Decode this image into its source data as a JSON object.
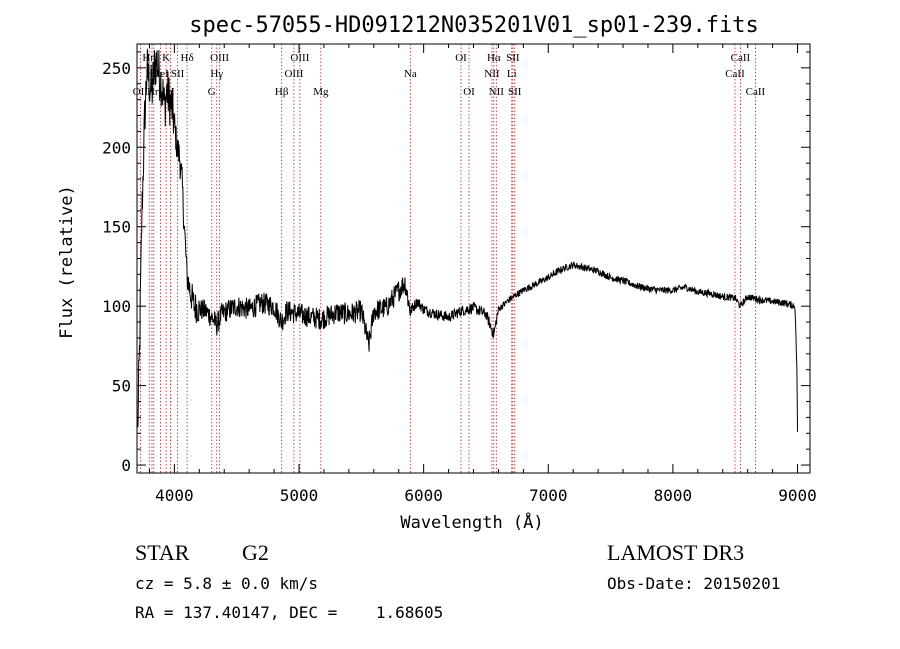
{
  "chart_data": {
    "type": "line",
    "title": "spec-57055-HD091212N035201V01_sp01-239.fits",
    "xlabel": "Wavelength (Å)",
    "ylabel": "Flux (relative)",
    "xlim": [
      3700,
      9100
    ],
    "ylim": [
      -5,
      265
    ],
    "xticks": [
      4000,
      5000,
      6000,
      7000,
      8000,
      9000
    ],
    "yticks": [
      0,
      50,
      100,
      150,
      200,
      250
    ],
    "grid": false,
    "series": [
      {
        "name": "flux",
        "x": [
          3705,
          3720,
          3740,
          3760,
          3780,
          3800,
          3820,
          3840,
          3860,
          3880,
          3900,
          3920,
          3940,
          3960,
          3980,
          4000,
          4020,
          4040,
          4060,
          4080,
          4100,
          4130,
          4160,
          4200,
          4250,
          4300,
          4340,
          4380,
          4420,
          4500,
          4600,
          4700,
          4800,
          4860,
          4900,
          5000,
          5100,
          5180,
          5300,
          5400,
          5500,
          5560,
          5600,
          5700,
          5800,
          5850,
          5893,
          5950,
          6000,
          6100,
          6200,
          6300,
          6400,
          6500,
          6563,
          6600,
          6700,
          6800,
          6900,
          7000,
          7100,
          7200,
          7300,
          7400,
          7500,
          7600,
          7700,
          7800,
          7900,
          8000,
          8100,
          8200,
          8300,
          8400,
          8500,
          8542,
          8600,
          8700,
          8800,
          8900,
          8980,
          8995,
          9000
        ],
        "y": [
          20,
          70,
          160,
          215,
          250,
          240,
          235,
          250,
          255,
          245,
          240,
          225,
          235,
          230,
          225,
          215,
          200,
          195,
          180,
          150,
          120,
          108,
          100,
          98,
          97,
          93,
          88,
          95,
          97,
          100,
          98,
          102,
          100,
          90,
          97,
          95,
          93,
          92,
          96,
          95,
          97,
          75,
          97,
          99,
          110,
          115,
          97,
          103,
          98,
          95,
          93,
          97,
          99,
          95,
          82,
          98,
          105,
          110,
          114,
          118,
          123,
          126,
          124,
          122,
          118,
          116,
          113,
          111,
          110,
          110,
          112,
          109,
          108,
          106,
          105,
          100,
          106,
          104,
          103,
          102,
          100,
          60,
          20
        ]
      }
    ],
    "lines": [
      {
        "x": 3727,
        "label": "OII",
        "row": 2
      },
      {
        "x": 3798,
        "label": "Hη",
        "row": 0
      },
      {
        "x": 3820,
        "label": "Hθ",
        "row": 1
      },
      {
        "x": 3835,
        "label": "Hη",
        "row": 2
      },
      {
        "x": 3889,
        "label": "HeI",
        "row": 1
      },
      {
        "x": 3934,
        "label": "K",
        "row": 0
      },
      {
        "x": 3969,
        "label": "H",
        "row": 2
      },
      {
        "x": 4026,
        "label": "SII",
        "row": 1
      },
      {
        "x": 4102,
        "label": "Hδ",
        "row": 0
      },
      {
        "x": 4300,
        "label": "G",
        "row": 2
      },
      {
        "x": 4340,
        "label": "Hγ",
        "row": 1
      },
      {
        "x": 4363,
        "label": "OIII",
        "row": 0
      },
      {
        "x": 4861,
        "label": "Hβ",
        "row": 2
      },
      {
        "x": 4959,
        "label": "OIII",
        "row": 1
      },
      {
        "x": 5007,
        "label": "OIII",
        "row": 0
      },
      {
        "x": 5175,
        "label": "Mg",
        "row": 2
      },
      {
        "x": 5893,
        "label": "Na",
        "row": 1
      },
      {
        "x": 6300,
        "label": "OI",
        "row": 0
      },
      {
        "x": 6364,
        "label": "OI",
        "row": 2
      },
      {
        "x": 6548,
        "label": "NII",
        "row": 1
      },
      {
        "x": 6563,
        "label": "Hα",
        "row": 0
      },
      {
        "x": 6583,
        "label": "NII",
        "row": 2
      },
      {
        "x": 6707,
        "label": "Li",
        "row": 1
      },
      {
        "x": 6716,
        "label": "SII",
        "row": 0
      },
      {
        "x": 6731,
        "label": "SII",
        "row": 2
      },
      {
        "x": 8498,
        "label": "CaII",
        "row": 1
      },
      {
        "x": 8542,
        "label": "CaII",
        "row": 0
      },
      {
        "x": 8662,
        "label": "CaII",
        "row": 2
      }
    ]
  },
  "info": {
    "class_label": "STAR",
    "subclass": "G2",
    "cz": "cz = 5.8 ± 0.0 km/s",
    "radec": "RA = 137.40147, DEC =    1.68605",
    "survey": "LAMOST DR3",
    "obs_date": "Obs-Date: 20150201"
  },
  "colors": {
    "line_marker": "#b22222",
    "spectrum": "#000000"
  }
}
